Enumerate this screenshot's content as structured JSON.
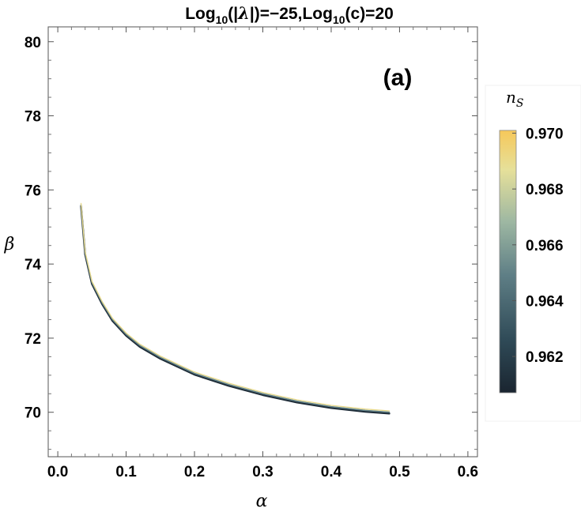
{
  "chart_data": {
    "type": "scatter",
    "title": {
      "part1": "Log",
      "sub1": "10",
      "part2": "(|",
      "lambda": "λ",
      "part3": "|)=−25,Log",
      "sub2": "10",
      "part4": "(c)=20"
    },
    "panel_label": "(a)",
    "xlabel": "α",
    "ylabel": "β",
    "xlim": [
      -0.014,
      0.614
    ],
    "ylim": [
      68.8,
      80.4
    ],
    "x_ticks": [
      0.0,
      0.1,
      0.2,
      0.3,
      0.4,
      0.5,
      0.6
    ],
    "x_tick_labels": [
      "0.0",
      "0.1",
      "0.2",
      "0.3",
      "0.4",
      "0.5",
      "0.6"
    ],
    "y_ticks": [
      70,
      72,
      74,
      76,
      78,
      80
    ],
    "y_tick_labels": [
      "70",
      "72",
      "74",
      "76",
      "78",
      "80"
    ],
    "curve_points": [
      {
        "x": 0.034,
        "y": 75.6
      },
      {
        "x": 0.04,
        "y": 74.3
      },
      {
        "x": 0.05,
        "y": 73.5
      },
      {
        "x": 0.065,
        "y": 72.95
      },
      {
        "x": 0.08,
        "y": 72.5
      },
      {
        "x": 0.1,
        "y": 72.1
      },
      {
        "x": 0.12,
        "y": 71.8
      },
      {
        "x": 0.15,
        "y": 71.48
      },
      {
        "x": 0.2,
        "y": 71.05
      },
      {
        "x": 0.25,
        "y": 70.75
      },
      {
        "x": 0.3,
        "y": 70.5
      },
      {
        "x": 0.35,
        "y": 70.3
      },
      {
        "x": 0.4,
        "y": 70.15
      },
      {
        "x": 0.45,
        "y": 70.05
      },
      {
        "x": 0.485,
        "y": 70.0
      }
    ],
    "colorbar": {
      "title": "n",
      "title_sub": "S",
      "min": 0.9607,
      "max": 0.9701,
      "ticks": [
        0.962,
        0.964,
        0.966,
        0.968,
        0.97
      ],
      "tick_labels": [
        "0.962",
        "0.964",
        "0.966",
        "0.968",
        "0.970"
      ],
      "colors": [
        "#1a2530",
        "#2f4a57",
        "#5f7f86",
        "#9db7a2",
        "#e6e09a",
        "#f6c85a"
      ]
    }
  }
}
